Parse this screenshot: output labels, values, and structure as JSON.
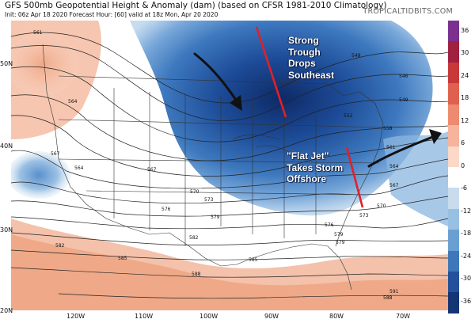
{
  "header": {
    "title": "GFS 500mb Geopotential Height & Anomaly (dam) (based on CFSR 1981-2010 Climatology)",
    "subtitle": "Init: 06z Apr 18 2020   Forecast Hour: [60]   valid at 18z Mon, Apr 20 2020",
    "brand": "TROPICALTIDBITS.COM"
  },
  "axes": {
    "lat_labels": [
      "50N",
      "40N",
      "30N",
      "20N"
    ],
    "lon_labels": [
      "120W",
      "110W",
      "100W",
      "90W",
      "80W",
      "70W"
    ]
  },
  "colorbar": {
    "labels": [
      "36",
      "30",
      "24",
      "18",
      "12",
      "6",
      "0",
      "-6",
      "-12",
      "-18",
      "-24",
      "-30",
      "-36"
    ],
    "colors": [
      "#7b2f8f",
      "#a02040",
      "#c83838",
      "#e06050",
      "#ee8a6e",
      "#f6b49c",
      "#fbd8c8",
      "#ffffff",
      "#c8dcee",
      "#98c0e2",
      "#6a9fd2",
      "#3f78ba",
      "#23509a",
      "#143474"
    ]
  },
  "contour_labels": [
    "561",
    "564",
    "567",
    "564",
    "567",
    "570",
    "573",
    "576",
    "579",
    "582",
    "585",
    "585",
    "588",
    "582",
    "579",
    "576",
    "573",
    "570",
    "567",
    "564",
    "561",
    "558",
    "552",
    "549",
    "546",
    "549",
    "579",
    "591",
    "588"
  ],
  "annotations": {
    "trough": [
      "Strong",
      "Trough",
      "Drops",
      "Southeast"
    ],
    "flat_jet": [
      "\"Flat Jet\"",
      "Takes Storm",
      "Offshore"
    ]
  },
  "colors": {
    "negative_anomaly": "#2f63b0",
    "positive_anomaly": "#f2b9a1",
    "arrow": "#111111",
    "trough_axis": "#e0202a"
  }
}
